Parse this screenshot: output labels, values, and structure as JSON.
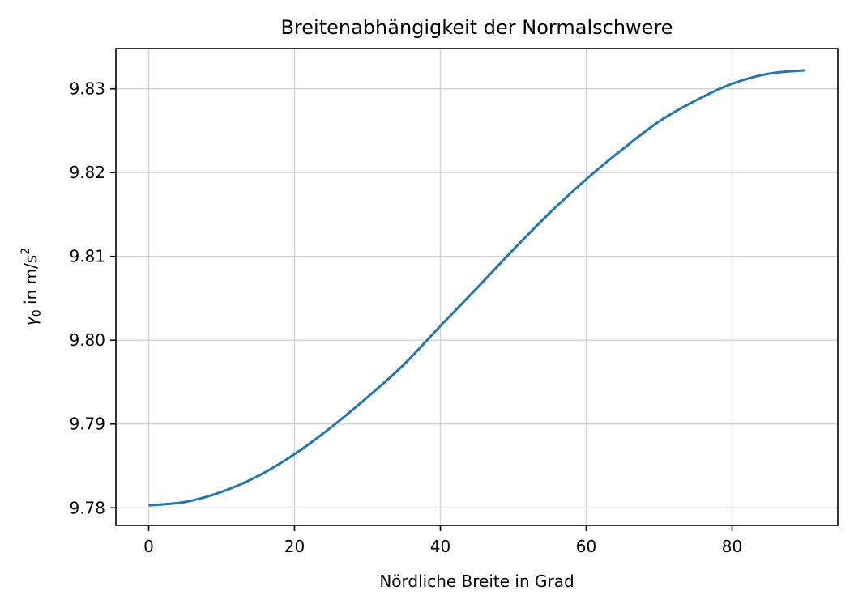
{
  "chart_data": {
    "type": "line",
    "title": "Breitenabhängigkeit der Normalschwere",
    "xlabel": "Nördliche Breite in Grad",
    "ylabel": {
      "symbol": "γ",
      "subscript": "0",
      "text": " in m/s",
      "superscript": "2"
    },
    "xlim": [
      -4.5,
      94.5
    ],
    "ylim": [
      9.7779,
      9.8348
    ],
    "xticks": [
      0,
      20,
      40,
      60,
      80
    ],
    "xtick_labels": [
      "0",
      "20",
      "40",
      "60",
      "80"
    ],
    "yticks": [
      9.78,
      9.79,
      9.8,
      9.81,
      9.82,
      9.83
    ],
    "ytick_labels": [
      "9.78",
      "9.79",
      "9.80",
      "9.81",
      "9.82",
      "9.83"
    ],
    "grid": true,
    "color": "#1f77b4",
    "series": [
      {
        "x": [
          0,
          5,
          10,
          15,
          20,
          25,
          30,
          35,
          40,
          45,
          50,
          55,
          60,
          65,
          70,
          75,
          80,
          85,
          90
        ],
        "values": [
          9.7803,
          9.7807,
          9.7819,
          9.7838,
          9.7864,
          9.7896,
          9.7932,
          9.7971,
          9.8017,
          9.8062,
          9.8108,
          9.8152,
          9.8192,
          9.8228,
          9.8261,
          9.8286,
          9.8306,
          9.8318,
          9.8322
        ]
      }
    ]
  }
}
